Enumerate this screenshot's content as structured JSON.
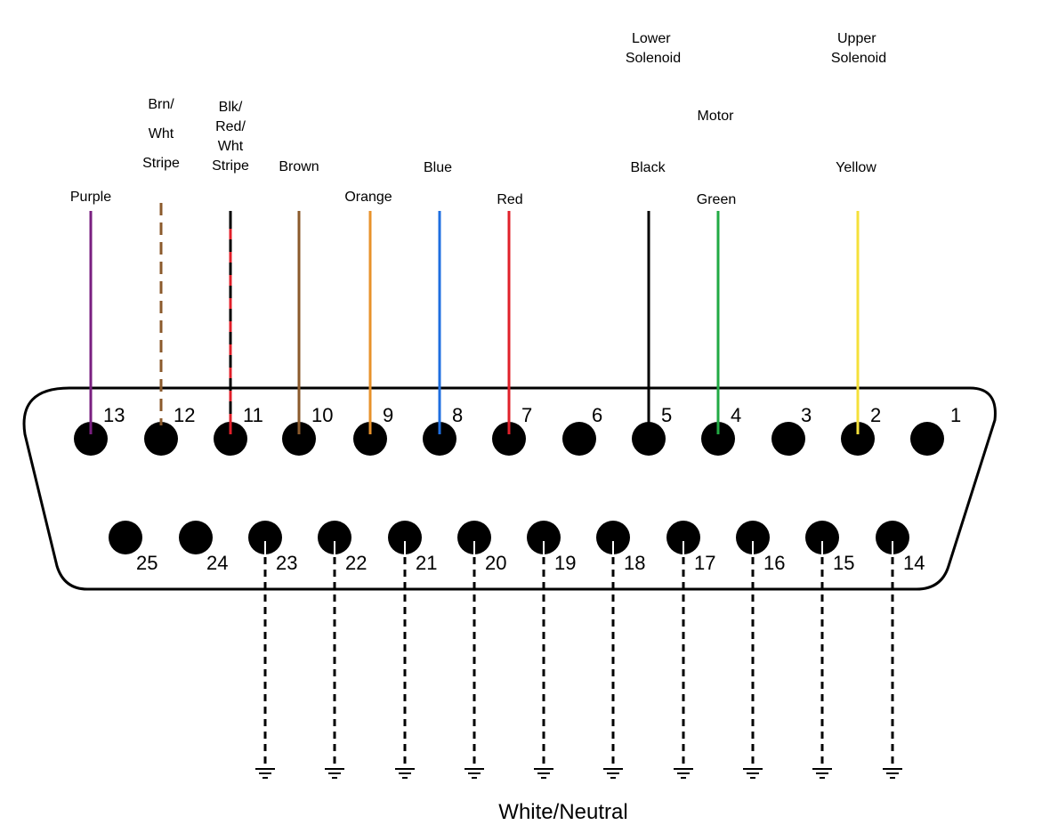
{
  "top_labels": {
    "lower_solenoid": [
      "Lower",
      "Solenoid"
    ],
    "upper_solenoid": [
      "Upper",
      "Solenoid"
    ],
    "motor": "Motor"
  },
  "top_pins": [
    {
      "pin": "13",
      "wire": [
        "Purple"
      ],
      "color": "#7a1f80",
      "style": "solid"
    },
    {
      "pin": "12",
      "wire": [
        "Brn/",
        "Wht",
        "Stripe"
      ],
      "color": "#8b5a2b",
      "style": "dashed"
    },
    {
      "pin": "11",
      "wire": [
        "Blk/",
        "Red/",
        "Wht",
        "Stripe"
      ],
      "color": "#000000",
      "color2": "#e0202a",
      "style": "striped"
    },
    {
      "pin": "10",
      "wire": [
        "Brown"
      ],
      "color": "#8b5a2b",
      "style": "solid"
    },
    {
      "pin": "9",
      "wire": [
        "Orange"
      ],
      "color": "#e8922b",
      "style": "solid"
    },
    {
      "pin": "8",
      "wire": [
        "Blue"
      ],
      "color": "#1f6fe0",
      "style": "solid"
    },
    {
      "pin": "7",
      "wire": [
        "Red"
      ],
      "color": "#e0202a",
      "style": "solid"
    },
    {
      "pin": "6",
      "wire": [],
      "color": "",
      "style": "none"
    },
    {
      "pin": "5",
      "wire": [
        "Black"
      ],
      "color": "#000000",
      "style": "solid"
    },
    {
      "pin": "4",
      "wire": [
        "Green"
      ],
      "color": "#22aa44",
      "style": "solid"
    },
    {
      "pin": "3",
      "wire": [],
      "color": "",
      "style": "none"
    },
    {
      "pin": "2",
      "wire": [
        "Yellow"
      ],
      "color": "#f5e03a",
      "style": "solid"
    },
    {
      "pin": "1",
      "wire": [],
      "color": "",
      "style": "none"
    }
  ],
  "bottom_pins": [
    {
      "pin": "25",
      "grounded": false
    },
    {
      "pin": "24",
      "grounded": false
    },
    {
      "pin": "23",
      "grounded": true
    },
    {
      "pin": "22",
      "grounded": true
    },
    {
      "pin": "21",
      "grounded": true
    },
    {
      "pin": "20",
      "grounded": true
    },
    {
      "pin": "19",
      "grounded": true
    },
    {
      "pin": "18",
      "grounded": true
    },
    {
      "pin": "17",
      "grounded": true
    },
    {
      "pin": "16",
      "grounded": true
    },
    {
      "pin": "15",
      "grounded": true
    },
    {
      "pin": "14",
      "grounded": true
    }
  ],
  "footer_label": "White/Neutral"
}
